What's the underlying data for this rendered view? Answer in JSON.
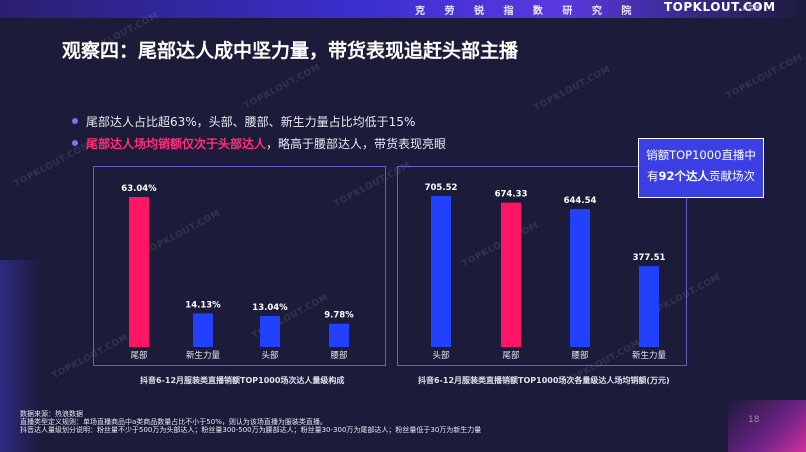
{
  "header": {
    "institute": "克 劳 锐 指 数 研 究 院",
    "logo": "TOPKLOUT.COM",
    "logo_sub": "克劳锐"
  },
  "title": "观察四：尾部达人成中坚力量，带货表现追赶头部主播",
  "bullets": {
    "b1": "尾部达人占比超63%，头部、腰部、新生力量占比均低于15%",
    "b2_highlight": "尾部达人场均销额仅次于头部达人",
    "b2_rest": "，略高于腰部达人，带货表现亮眼"
  },
  "callout": {
    "line1": "销额TOP1000直播中",
    "line2_pre": "有",
    "line2_bold": "92个达人",
    "line2_post": "贡献场次"
  },
  "colors": {
    "highlight": "#ff2e7a",
    "bar_primary": "#ff1466",
    "bar_secondary": "#2241ff",
    "panel_border": "#6a5cc8",
    "callout_bg": "#3b3fe4"
  },
  "chart_data": [
    {
      "type": "bar",
      "title": "抖音6-12月服装类直播销额TOP1000场次达人量级构成",
      "categories": [
        "尾部",
        "新生力量",
        "头部",
        "腰部"
      ],
      "values": [
        63.04,
        14.13,
        13.04,
        9.78
      ],
      "value_labels": [
        "63.04%",
        "14.13%",
        "13.04%",
        "9.78%"
      ],
      "unit": "%",
      "highlight_index": 0,
      "ylim": [
        0,
        63.04
      ]
    },
    {
      "type": "bar",
      "title": "抖音6-12月服装类直播销额TOP1000场次各量级达人场均销额(万元)",
      "categories": [
        "头部",
        "尾部",
        "腰部",
        "新生力量"
      ],
      "values": [
        705.52,
        674.33,
        644.54,
        377.51
      ],
      "value_labels": [
        "705.52",
        "674.33",
        "644.54",
        "377.51"
      ],
      "unit": "万元",
      "highlight_index": 1,
      "ylim": [
        0,
        705.52
      ]
    }
  ],
  "footnotes": {
    "f1": "数据来源：热浪数据",
    "f2": "直播类型定义规则：单场直播商品中a类商品数量占比不小于50%，则认为该场直播为服装类直播。",
    "f3": "抖音达人量级划分说明：粉丝量不少于500万为头部达人；粉丝量300-500万为腰部达人；粉丝量30-300万为尾部达人；粉丝量低于30万为新生力量"
  },
  "page_number": "18",
  "watermark": "TOPKLOUT.COM"
}
